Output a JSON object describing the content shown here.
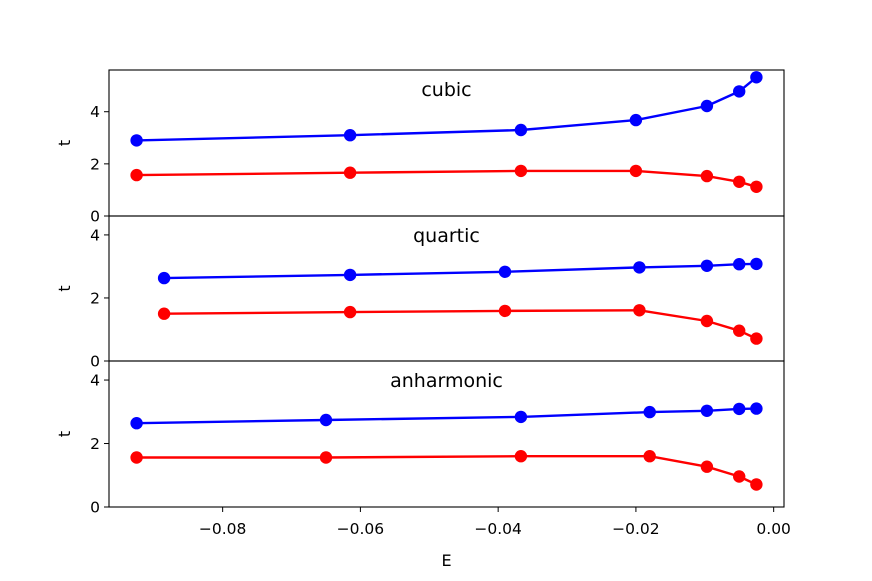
{
  "chart_data": {
    "type": "line",
    "xlabel": "E",
    "xlim": [
      -0.0965,
      0.0015
    ],
    "x_ticks": [
      "−0.08",
      "−0.06",
      "−0.04",
      "−0.02",
      "0.00"
    ],
    "x_tick_values": [
      -0.08,
      -0.06,
      -0.04,
      -0.02,
      0.0
    ],
    "colors": {
      "blue": "#0000ff",
      "red": "#ff0000"
    },
    "panels": [
      {
        "title": "cubic",
        "ylabel": "t",
        "ylim": [
          0,
          5.6
        ],
        "y_ticks": [
          "0",
          "2",
          "4"
        ],
        "y_tick_values": [
          0,
          2,
          4
        ],
        "series": [
          {
            "color": "blue",
            "x": [
              -0.0925,
              -0.0615,
              -0.0367,
              -0.02,
              -0.0097,
              -0.005,
              -0.0025
            ],
            "y": [
              2.9,
              3.1,
              3.3,
              3.68,
              4.22,
              4.78,
              5.32
            ]
          },
          {
            "color": "red",
            "x": [
              -0.0925,
              -0.0615,
              -0.0367,
              -0.02,
              -0.0097,
              -0.005,
              -0.0025
            ],
            "y": [
              1.57,
              1.66,
              1.73,
              1.73,
              1.53,
              1.31,
              1.12
            ]
          }
        ]
      },
      {
        "title": "quartic",
        "ylabel": "t",
        "ylim": [
          0,
          4.6
        ],
        "y_ticks": [
          "0",
          "2",
          "4"
        ],
        "y_tick_values": [
          0,
          2,
          4
        ],
        "series": [
          {
            "color": "blue",
            "x": [
              -0.0885,
              -0.0615,
              -0.039,
              -0.0195,
              -0.0097,
              -0.005,
              -0.0025
            ],
            "y": [
              2.63,
              2.73,
              2.83,
              2.97,
              3.02,
              3.07,
              3.08
            ]
          },
          {
            "color": "red",
            "x": [
              -0.0885,
              -0.0615,
              -0.039,
              -0.0195,
              -0.0097,
              -0.005,
              -0.0025
            ],
            "y": [
              1.5,
              1.55,
              1.59,
              1.61,
              1.27,
              0.96,
              0.71
            ]
          }
        ]
      },
      {
        "title": "anharmonic",
        "ylabel": "t",
        "ylim": [
          0,
          4.6
        ],
        "y_ticks": [
          "0",
          "2",
          "4"
        ],
        "y_tick_values": [
          0,
          2,
          4
        ],
        "series": [
          {
            "color": "blue",
            "x": [
              -0.0925,
              -0.065,
              -0.0367,
              -0.018,
              -0.0097,
              -0.005,
              -0.0025
            ],
            "y": [
              2.64,
              2.74,
              2.84,
              2.99,
              3.03,
              3.09,
              3.1
            ]
          },
          {
            "color": "red",
            "x": [
              -0.0925,
              -0.065,
              -0.0367,
              -0.018,
              -0.0097,
              -0.005,
              -0.0025
            ],
            "y": [
              1.56,
              1.56,
              1.6,
              1.6,
              1.27,
              0.96,
              0.71
            ]
          }
        ]
      }
    ]
  }
}
